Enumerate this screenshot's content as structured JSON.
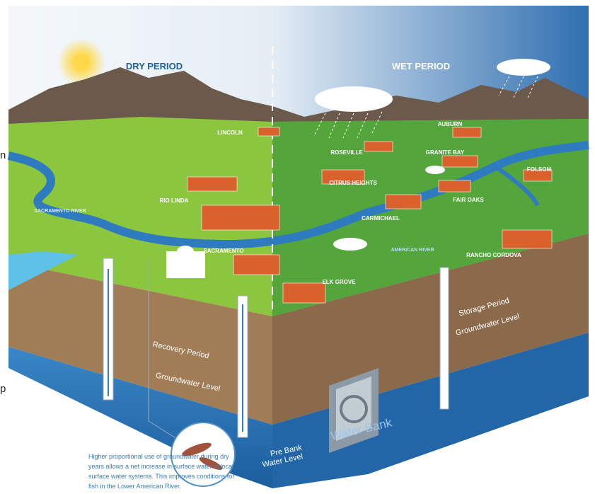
{
  "header": {
    "dry": "DRY PERIOD",
    "wet": "WET PERIOD"
  },
  "places": [
    "LINCOLN",
    "ROSEVILLE",
    "AUBURN",
    "GRANITE BAY",
    "FOLSOM",
    "CITRUS HEIGHTS",
    "FAIR OAKS",
    "RIO LINDA",
    "CARMICHAEL",
    "SACRAMENTO",
    "RANCHO CORDOVA",
    "ELK GROVE"
  ],
  "rivers": [
    "SACRAMENTO RIVER",
    "AMERICAN RIVER"
  ],
  "layers": {
    "recovery": "Recovery Period",
    "dry_groundwater": "Groundwater Level",
    "storage": "Storage Period",
    "wet_groundwater": "Groundwater Level",
    "pre_bank": [
      "Pre Bank",
      "Water Level"
    ],
    "bank": "Water Bank"
  },
  "caption": [
    "Higher proportional use of groundwater during dry",
    "years allows a net increase in surface water in local",
    "surface water systems. This improves conditions for",
    "fish in the Lower American River."
  ],
  "edge_fragments": [
    "n",
    "p"
  ]
}
